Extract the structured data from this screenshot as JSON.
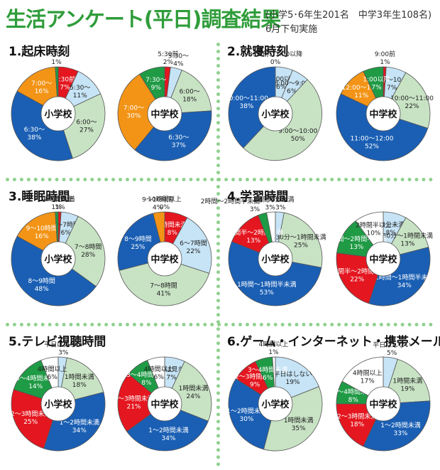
{
  "header": {
    "title": "生活アンケート(平日)調査結果",
    "sample_note": "(小学5･6年生201名　中学3年生108名)",
    "date_note": "6月下旬実施"
  },
  "colors": {
    "red": "#e4161f",
    "lightblue": "#c6e4f6",
    "lightgreen": "#c8e3c4",
    "blue": "#1a5fb4",
    "orange": "#f39416",
    "green": "#1f9a45",
    "white": "#ffffff",
    "title_green": "#2f9d3a"
  },
  "sections": [
    {
      "number": "1.",
      "title": "起床時刻"
    },
    {
      "number": "2.",
      "title": "就寝時刻"
    },
    {
      "number": "3.",
      "title": "睡眠時間"
    },
    {
      "number": "4.",
      "title": "学習時間"
    },
    {
      "number": "5.",
      "title": "テレビ視聴時間"
    },
    {
      "number": "6.",
      "title": "ゲーム・インターネット・携帯メール等"
    }
  ],
  "chart_data": [
    {
      "type": "pie",
      "question": "起床時刻",
      "center_label": "小学校",
      "slices": [
        {
          "label": "5:30前",
          "value": 7,
          "color": "red"
        },
        {
          "label": "5:30～",
          "value": 11,
          "color": "lightblue"
        },
        {
          "label": "6:00～",
          "value": 27,
          "color": "lightgreen"
        },
        {
          "label": "6:30～",
          "value": 38,
          "color": "blue"
        },
        {
          "label": "7:00～",
          "value": 16,
          "color": "orange"
        },
        {
          "label": "7:30～",
          "value": 1,
          "color": "green"
        }
      ]
    },
    {
      "type": "pie",
      "question": "起床時刻",
      "center_label": "中学校",
      "slices": [
        {
          "label": "5:30前",
          "value": 2,
          "color": "red"
        },
        {
          "label": "5:30～",
          "value": 4,
          "color": "lightblue"
        },
        {
          "label": "6:00～",
          "value": 18,
          "color": "lightgreen"
        },
        {
          "label": "6:30～",
          "value": 37,
          "color": "blue"
        },
        {
          "label": "7:00～",
          "value": 30,
          "color": "orange"
        },
        {
          "label": "7:30～",
          "value": 9,
          "color": "green"
        }
      ]
    },
    {
      "type": "pie",
      "question": "就寝時刻",
      "center_label": "小学校",
      "slices": [
        {
          "label": "11:00以降",
          "value": 6,
          "color": "lightblue"
        },
        {
          "label": "8:00～9:00",
          "value": 6,
          "color": "lightblue"
        },
        {
          "label": "9:00～10:00",
          "value": 50,
          "color": "lightgreen"
        },
        {
          "label": "10:00～11:00",
          "value": 38,
          "color": "blue"
        },
        {
          "label": "8:00前、1:00以降",
          "value": 0,
          "color": "green"
        }
      ]
    },
    {
      "type": "pie",
      "question": "就寝時刻",
      "center_label": "中学校",
      "slices": [
        {
          "label": "9:00前",
          "value": 1,
          "color": "red"
        },
        {
          "label": "9:00～10:00",
          "value": 7,
          "color": "lightblue"
        },
        {
          "label": "10:00～11:00",
          "value": 22,
          "color": "lightgreen"
        },
        {
          "label": "11:00～12:00",
          "value": 52,
          "color": "blue"
        },
        {
          "label": "12:00～1:00",
          "value": 11,
          "color": "orange"
        },
        {
          "label": "1:00以降",
          "value": 7,
          "color": "green"
        }
      ]
    },
    {
      "type": "pie",
      "question": "睡眠時間",
      "center_label": "小学校",
      "slices": [
        {
          "label": "6時間未満",
          "value": 1,
          "color": "red"
        },
        {
          "label": "6～7時間",
          "value": 6,
          "color": "lightblue"
        },
        {
          "label": "7～8時間",
          "value": 28,
          "color": "lightgreen"
        },
        {
          "label": "8～9時間",
          "value": 48,
          "color": "blue"
        },
        {
          "label": "9～10時間",
          "value": 16,
          "color": "orange"
        },
        {
          "label": "10時間以上",
          "value": 1,
          "color": "green"
        }
      ]
    },
    {
      "type": "pie",
      "question": "睡眠時間",
      "center_label": "中学校",
      "slices": [
        {
          "label": "6時間未満",
          "value": 8,
          "color": "red"
        },
        {
          "label": "6～7時間",
          "value": 22,
          "color": "lightblue"
        },
        {
          "label": "7～8時間",
          "value": 41,
          "color": "lightgreen"
        },
        {
          "label": "8～9時間",
          "value": 25,
          "color": "blue"
        },
        {
          "label": "9～10時間",
          "value": 4,
          "color": "orange"
        },
        {
          "label": "10時間以上",
          "value": 0,
          "color": "green"
        }
      ]
    },
    {
      "type": "pie",
      "question": "学習時間",
      "center_label": "小学校",
      "slices": [
        {
          "label": "30分未満",
          "value": 3,
          "color": "lightblue"
        },
        {
          "label": "30分～1時間未満",
          "value": 25,
          "color": "lightgreen"
        },
        {
          "label": "1時間～1時間半未満",
          "value": 53,
          "color": "blue"
        },
        {
          "label": "1時間半～2時間未満",
          "value": 13,
          "color": "red"
        },
        {
          "label": "2時間～2時間半未満",
          "value": 3,
          "color": "green"
        },
        {
          "label": "2時間半以上",
          "value": 3,
          "color": "white"
        }
      ]
    },
    {
      "type": "pie",
      "question": "学習時間",
      "center_label": "中学校",
      "slices": [
        {
          "label": "30分未満",
          "value": 8,
          "color": "lightblue"
        },
        {
          "label": "30分～1時間未満",
          "value": 13,
          "color": "lightgreen"
        },
        {
          "label": "1時間～1時間半未満",
          "value": 34,
          "color": "blue"
        },
        {
          "label": "1時間半～2時間未満",
          "value": 22,
          "color": "red"
        },
        {
          "label": "2時間～2時間半未満",
          "value": 13,
          "color": "green"
        },
        {
          "label": "2時間半以上",
          "value": 10,
          "color": "white"
        }
      ]
    },
    {
      "type": "pie",
      "question": "テレビ視聴時間",
      "center_label": "小学校",
      "slices": [
        {
          "label": "平日は見ない",
          "value": 3,
          "color": "lightblue"
        },
        {
          "label": "1時間未満",
          "value": 18,
          "color": "lightgreen"
        },
        {
          "label": "1～2時間未満",
          "value": 34,
          "color": "blue"
        },
        {
          "label": "2～3時間未満",
          "value": 25,
          "color": "red"
        },
        {
          "label": "3～4時間未満",
          "value": 14,
          "color": "green"
        },
        {
          "label": "4時間以上",
          "value": 6,
          "color": "white"
        }
      ]
    },
    {
      "type": "pie",
      "question": "テレビ視聴時間",
      "center_label": "中学校",
      "slices": [
        {
          "label": "平日は見ない",
          "value": 7,
          "color": "lightblue"
        },
        {
          "label": "1時間未満",
          "value": 24,
          "color": "lightgreen"
        },
        {
          "label": "1～2時間未満",
          "value": 34,
          "color": "blue"
        },
        {
          "label": "2～3時間未満",
          "value": 21,
          "color": "red"
        },
        {
          "label": "3～4時間未満",
          "value": 8,
          "color": "green"
        },
        {
          "label": "4時間以上",
          "value": 6,
          "color": "white"
        }
      ]
    },
    {
      "type": "pie",
      "question": "ゲーム・インターネット・携帯メール等",
      "center_label": "小学校",
      "slices": [
        {
          "label": "平日はしない",
          "value": 19,
          "color": "lightblue"
        },
        {
          "label": "1時間未満",
          "value": 35,
          "color": "lightgreen"
        },
        {
          "label": "1～2時間未満",
          "value": 30,
          "color": "blue"
        },
        {
          "label": "2～3時間未満",
          "value": 9,
          "color": "red"
        },
        {
          "label": "3～4時間未満",
          "value": 6,
          "color": "green"
        },
        {
          "label": "4時間以上",
          "value": 1,
          "color": "white"
        }
      ]
    },
    {
      "type": "pie",
      "question": "ゲーム・インターネット・携帯メール等",
      "center_label": "中学校",
      "slices": [
        {
          "label": "平日はしない",
          "value": 5,
          "color": "lightblue"
        },
        {
          "label": "1時間未満",
          "value": 19,
          "color": "lightgreen"
        },
        {
          "label": "1～2時間未満",
          "value": 33,
          "color": "blue"
        },
        {
          "label": "2～3時間未満",
          "value": 18,
          "color": "red"
        },
        {
          "label": "3～4時間未満",
          "value": 8,
          "color": "green"
        },
        {
          "label": "4時間以上",
          "value": 17,
          "color": "white"
        }
      ]
    }
  ]
}
